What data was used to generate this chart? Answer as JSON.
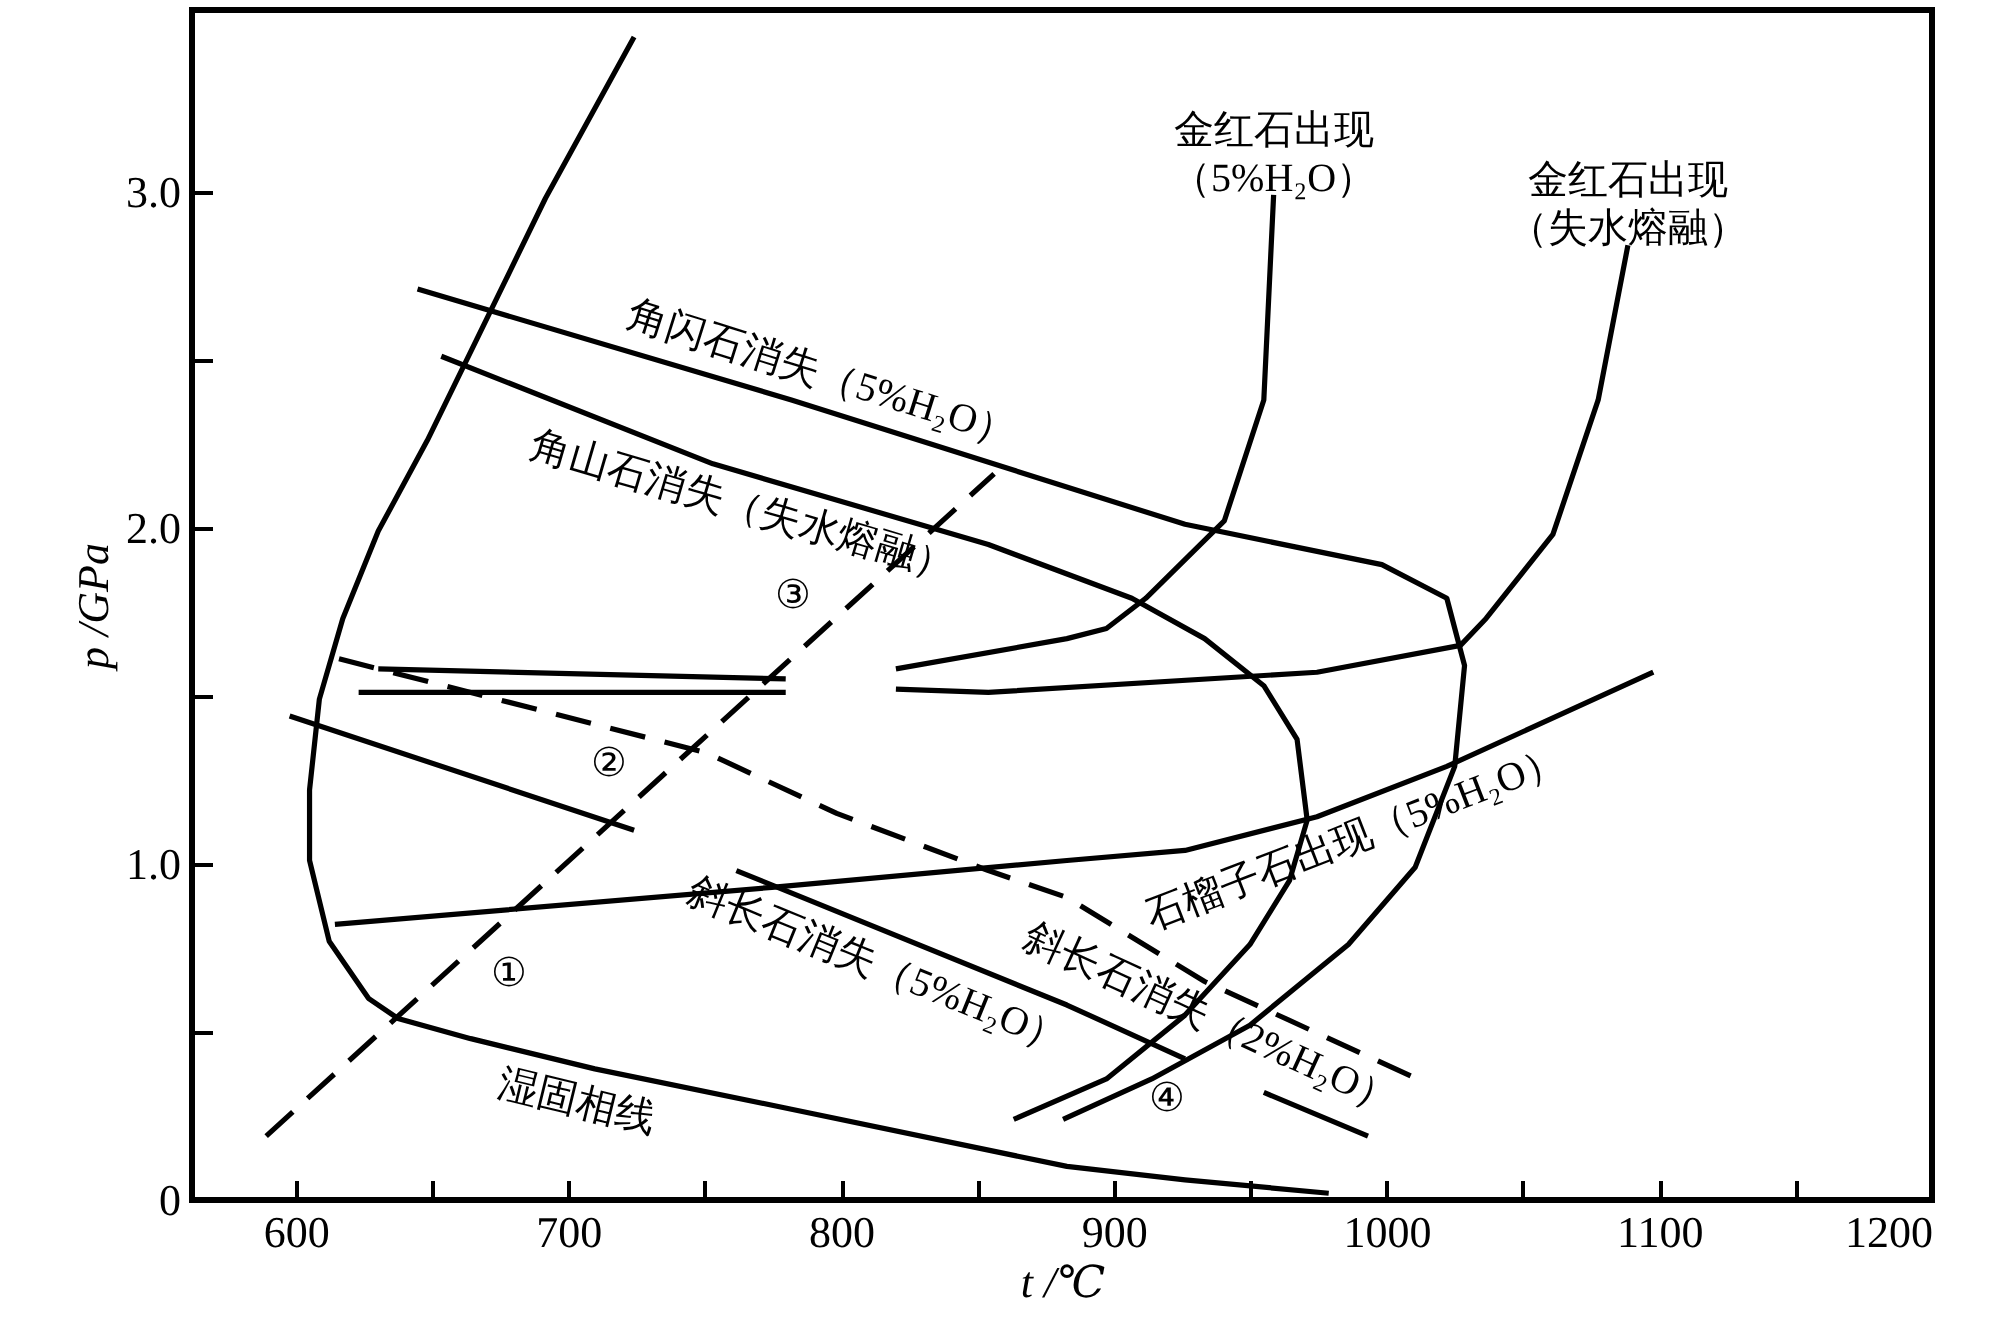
{
  "chart_data": {
    "type": "line",
    "xlabel": "t /℃",
    "ylabel": "p /GPa",
    "xlim": [
      562,
      1200
    ],
    "ylim": [
      0,
      3.54
    ],
    "xticks": [
      600,
      {
        "value": 650,
        "label": null
      },
      700,
      {
        "value": 750,
        "label": null
      },
      800,
      {
        "value": 850,
        "label": null
      },
      900,
      {
        "value": 950,
        "label": null
      },
      1000,
      {
        "value": 1050,
        "label": null
      },
      1100,
      {
        "value": 1150,
        "label": null
      },
      1200
    ],
    "yticks": [
      0,
      {
        "value": 0.5,
        "label": null
      },
      {
        "value": 1,
        "label": "1.0"
      },
      {
        "value": 1.5,
        "label": null
      },
      {
        "value": 2,
        "label": "2.0"
      },
      {
        "value": 2.5,
        "label": null
      },
      {
        "value": 3,
        "label": "3.0"
      }
    ],
    "grid": false,
    "marker": "none",
    "series": [
      {
        "color": "#000000",
        "x": [
          724.1,
          691.6,
          666.4,
          648.3,
          630.3,
          617.3,
          608.7,
          605.1,
          605.1,
          612.3,
          626.7,
          637.5,
          664.2,
          709.7,
          781.8,
          882.8,
          926.1,
          978.8
        ],
        "values": [
          3.46,
          2.98,
          2.56,
          2.26,
          1.99,
          1.73,
          1.49,
          1.22,
          1.01,
          0.77,
          0.6,
          0.54,
          0.48,
          0.39,
          0.27,
          0.1,
          0.06,
          0.02
        ]
      },
      {
        "color": "#000000",
        "x": [
          644.7,
          781.8,
          926.1,
          998.3,
          1022.1,
          1028.6,
          1025,
          1010.5,
          986,
          949.9,
          913.9,
          881.4
        ],
        "values": [
          2.71,
          2.38,
          2.01,
          1.89,
          1.79,
          1.59,
          1.29,
          0.99,
          0.76,
          0.52,
          0.36,
          0.24
        ]
      },
      {
        "color": "#000000",
        "x": [
          653.4,
          753,
          854,
          906.6,
          933.3,
          955,
          967.2,
          970.9,
          964.4,
          949.9,
          926.1,
          897.3,
          863.3
        ],
        "values": [
          2.51,
          2.19,
          1.95,
          1.79,
          1.67,
          1.53,
          1.37,
          1.13,
          0.95,
          0.76,
          0.55,
          0.36,
          0.24
        ]
      },
      {
        "color": "#000000",
        "x": [
          1088.5,
          1077.6,
          1061,
          1036.5,
          1027.1,
          974.5,
          854,
          820.1,
          800,
          779.7,
          623.1
        ],
        "values": [
          2.84,
          2.38,
          1.98,
          1.73,
          1.65,
          1.57,
          1.51,
          1.52,
          null,
          1.51,
          1.51
        ]
      },
      {
        "color": "#000000",
        "x": [
          958.6,
          955,
          940.5,
          911.7,
          897.3,
          882.8,
          820.1,
          800,
          779.7,
          630.3
        ],
        "values": [
          2.99,
          2.38,
          2.02,
          1.79,
          1.7,
          1.67,
          1.58,
          null,
          1.55,
          1.58
        ]
      },
      {
        "color": "#000000",
        "x": [
          614.4,
          774.6,
          882.8,
          926.1,
          974.5,
          1022.1,
          1097.8
        ],
        "values": [
          0.82,
          0.93,
          1.01,
          1.04,
          1.14,
          1.29,
          1.57
        ]
      },
      {
        "color": "#000000",
        "line_style": "dashed",
        "x": [
          615.9,
          750.8,
          798.4,
          854,
          882.8,
          933.3,
          1011.3
        ],
        "values": [
          1.61,
          1.33,
          1.15,
          0.98,
          0.9,
          0.65,
          0.36
        ]
      },
      {
        "color": "#000000",
        "x": [
          597.8,
          724.1,
          740,
          761.6,
          882.8,
          926.1,
          940,
          955,
          993.2
        ],
        "values": [
          1.44,
          1.1,
          null,
          0.98,
          0.58,
          0.42,
          null,
          0.32,
          0.19
        ]
      },
      {
        "color": "#000000",
        "line_style": "dashed",
        "x": [
          589.2,
          856.1
        ],
        "values": [
          0.19,
          2.16
        ]
      }
    ],
    "annotations": [
      {
        "text": "角闪石消失（5%H₂O）",
        "x": 789,
        "y": 2.36
      },
      {
        "text": "角山石消失（失水熔融）",
        "x": 767.4,
        "y": 2.16
      },
      {
        "text": "金红石出现（5%H₂O）",
        "x": 958.6,
        "y": 2.99
      },
      {
        "text": "金红石出现（失水熔融）",
        "x": 1088.5,
        "y": 2.84
      },
      {
        "text": "石榴子石出现（5%H₂O）",
        "x": 983.8,
        "y": 1.17
      },
      {
        "text": "斜长石消失（5%H₂O）",
        "x": 817.9,
        "y": 0.79
      },
      {
        "text": "斜长石消失（2%H₂O）",
        "x": 940.5,
        "y": 0.63
      },
      {
        "text": "湿固相线",
        "x": 706.1,
        "y": 0.39
      },
      {
        "text": "①",
        "x": 667.2,
        "y": 0.77
      },
      {
        "text": "②",
        "x": 725.9,
        "y": 1.2
      },
      {
        "text": "③",
        "x": 793.2,
        "y": 1.7
      },
      {
        "text": "④",
        "x": 926.1,
        "y": 0.42
      }
    ]
  }
}
